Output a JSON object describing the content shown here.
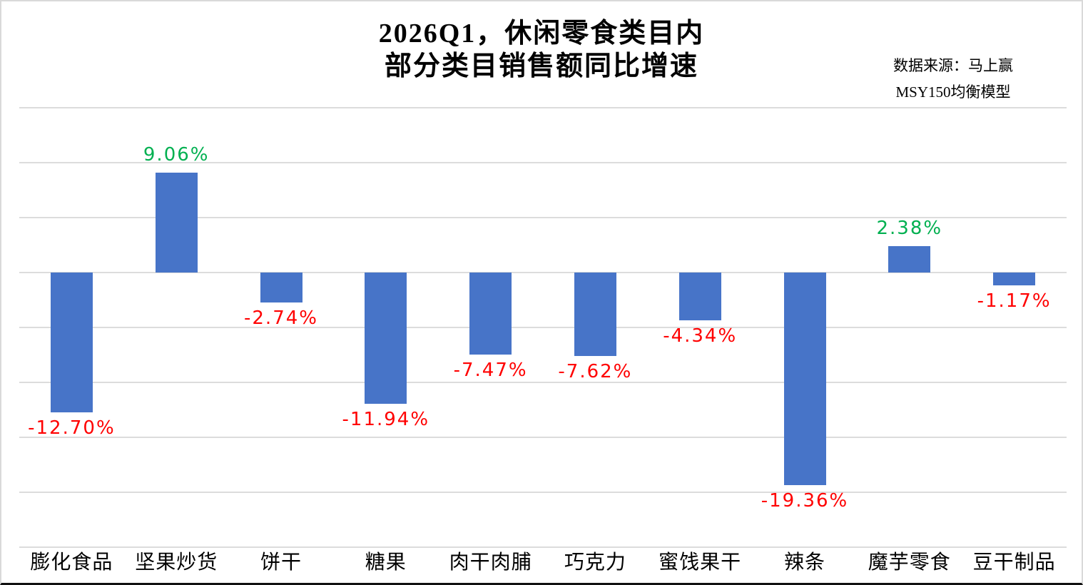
{
  "title": {
    "line1": "2026Q1，休闲零食类目内",
    "line2": "部分类目销售额同比增速"
  },
  "source": {
    "line1": "数据来源：马上赢",
    "line2": "MSY150均衡模型"
  },
  "colors": {
    "bar": "#4774c8",
    "positive_label": "#00b050",
    "negative_label": "#ff0000",
    "gridline": "#dcdcdc"
  },
  "chart_data": {
    "type": "bar",
    "title": "2026Q1，休闲零食类目内部分类目销售额同比增速",
    "categories": [
      "膨化食品",
      "坚果炒货",
      "饼干",
      "糖果",
      "肉干肉脯",
      "巧克力",
      "蜜饯果干",
      "辣条",
      "魔芋零食",
      "豆干制品"
    ],
    "values": [
      -12.7,
      9.06,
      -2.74,
      -11.94,
      -7.47,
      -7.62,
      -4.34,
      -19.36,
      2.38,
      -1.17
    ],
    "labels": [
      "-12.70%",
      "9.06%",
      "-2.74%",
      "-11.94%",
      "-7.47%",
      "-7.62%",
      "-4.34%",
      "-19.36%",
      "2.38%",
      "-1.17%"
    ],
    "unit": "%",
    "xlabel": "",
    "ylabel": "",
    "ylim": [
      -25,
      15
    ],
    "gridline_step": 5,
    "grid": true,
    "legend": false,
    "y_axis_labels_visible": false,
    "value_label_rule": "positive green above bar, negative red below bar"
  }
}
